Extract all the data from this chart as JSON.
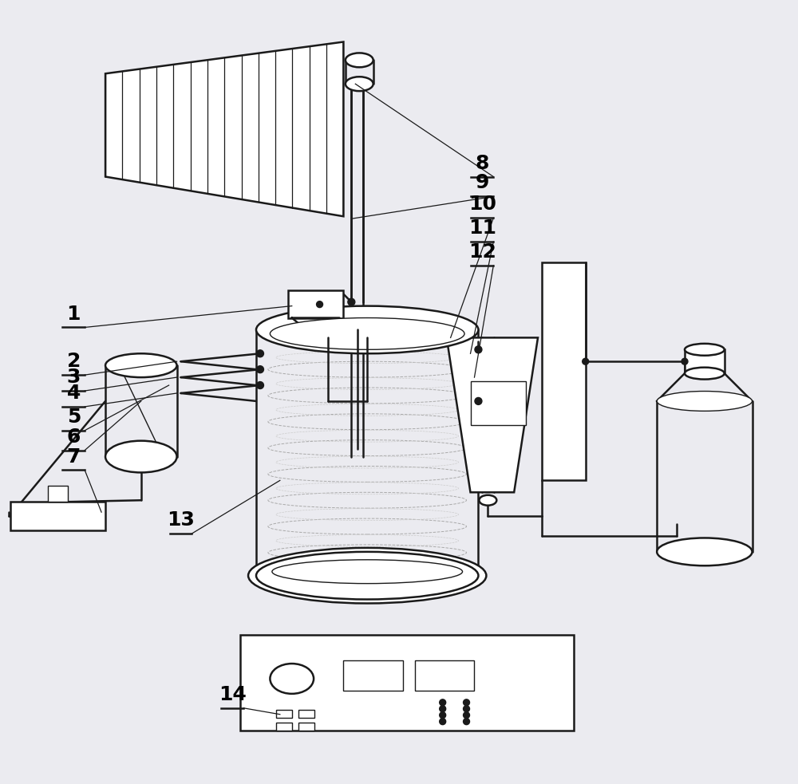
{
  "bg_color": "#ebebf0",
  "line_color": "#1a1a1a",
  "label_color": "#000000",
  "lw": 1.8,
  "lw_thin": 1.0,
  "lw_coil": 0.7
}
